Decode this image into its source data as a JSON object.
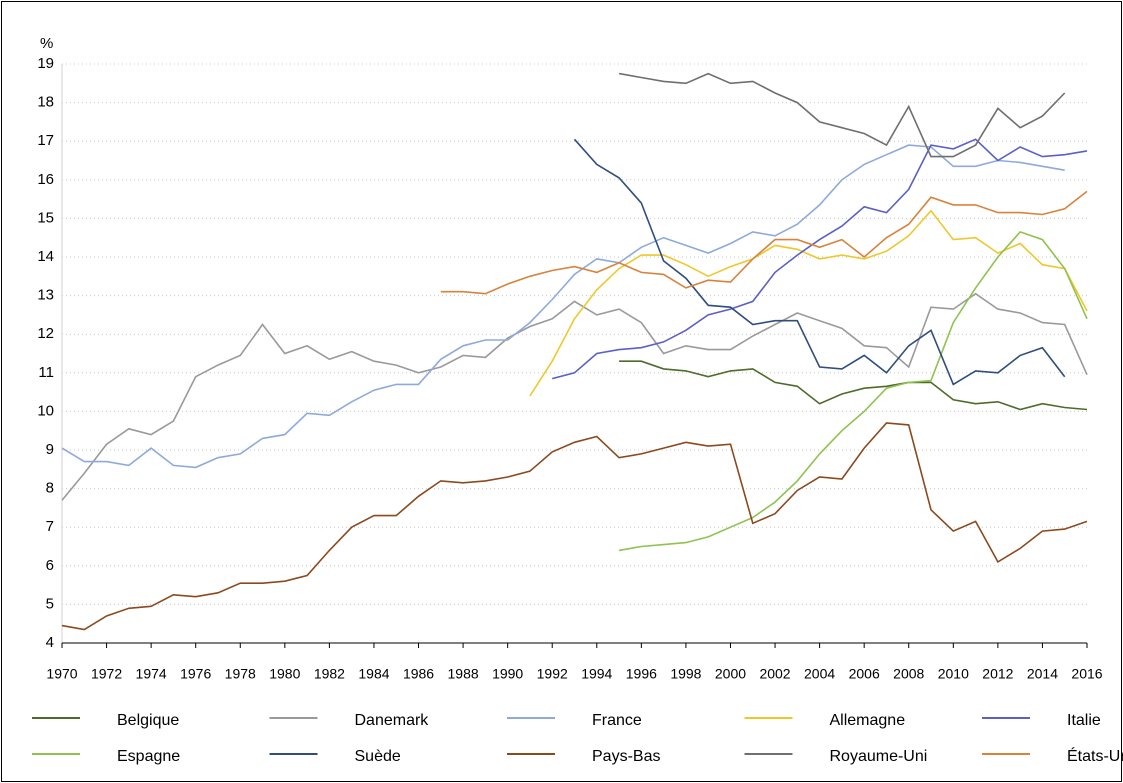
{
  "chart_data": {
    "type": "line",
    "y_label": "%",
    "x": [
      1970,
      1971,
      1972,
      1973,
      1974,
      1975,
      1976,
      1977,
      1978,
      1979,
      1980,
      1981,
      1982,
      1983,
      1984,
      1985,
      1986,
      1987,
      1988,
      1989,
      1990,
      1991,
      1992,
      1993,
      1994,
      1995,
      1996,
      1997,
      1998,
      1999,
      2000,
      2001,
      2002,
      2003,
      2004,
      2005,
      2006,
      2007,
      2008,
      2009,
      2010,
      2011,
      2012,
      2013,
      2014,
      2015,
      2016
    ],
    "xlim": [
      1970,
      2016
    ],
    "xticks": [
      1970,
      1972,
      1974,
      1976,
      1978,
      1980,
      1982,
      1984,
      1986,
      1988,
      1990,
      1992,
      1994,
      1996,
      1998,
      2000,
      2002,
      2004,
      2006,
      2008,
      2010,
      2012,
      2014,
      2016
    ],
    "ylim": [
      4,
      19
    ],
    "yticks": [
      4,
      5,
      6,
      7,
      8,
      9,
      10,
      11,
      12,
      13,
      14,
      15,
      16,
      17,
      18,
      19
    ],
    "grid": true,
    "series": [
      {
        "name": "Belgique",
        "color": "#4e6b2a",
        "values": [
          null,
          null,
          null,
          null,
          null,
          null,
          null,
          null,
          null,
          null,
          null,
          null,
          null,
          null,
          null,
          null,
          null,
          null,
          null,
          null,
          null,
          null,
          null,
          null,
          null,
          11.3,
          11.3,
          11.1,
          11.05,
          10.9,
          11.05,
          11.1,
          10.75,
          10.65,
          10.2,
          10.45,
          10.6,
          10.65,
          10.75,
          10.75,
          10.3,
          10.2,
          10.25,
          10.05,
          10.2,
          10.1,
          10.05
        ]
      },
      {
        "name": "Danemark",
        "color": "#9a9a9a",
        "values": [
          7.7,
          8.4,
          9.15,
          9.55,
          9.4,
          9.75,
          10.9,
          11.2,
          11.45,
          12.25,
          11.5,
          11.7,
          11.35,
          11.55,
          11.3,
          11.2,
          11.0,
          11.15,
          11.45,
          11.4,
          11.9,
          12.2,
          12.4,
          12.85,
          12.5,
          12.65,
          12.3,
          11.5,
          11.7,
          11.6,
          11.6,
          11.95,
          12.25,
          12.55,
          12.35,
          12.15,
          11.7,
          11.65,
          11.15,
          12.7,
          12.65,
          13.05,
          12.65,
          12.55,
          12.3,
          12.25,
          10.95
        ]
      },
      {
        "name": "France",
        "color": "#8eaadb",
        "values": [
          9.05,
          8.7,
          8.7,
          8.6,
          9.05,
          8.6,
          8.55,
          8.8,
          8.9,
          9.3,
          9.4,
          9.95,
          9.9,
          10.25,
          10.55,
          10.7,
          10.7,
          11.35,
          11.7,
          11.85,
          11.85,
          12.3,
          12.9,
          13.55,
          13.95,
          13.85,
          14.25,
          14.5,
          14.3,
          14.1,
          14.35,
          14.65,
          14.55,
          14.85,
          15.35,
          16.0,
          16.4,
          16.65,
          16.9,
          16.85,
          16.35,
          16.35,
          16.5,
          16.45,
          16.35,
          16.25,
          null
        ]
      },
      {
        "name": "Allemagne",
        "color": "#eec82a",
        "values": [
          null,
          null,
          null,
          null,
          null,
          null,
          null,
          null,
          null,
          null,
          null,
          null,
          null,
          null,
          null,
          null,
          null,
          null,
          null,
          null,
          null,
          10.4,
          11.3,
          12.4,
          13.15,
          13.7,
          14.05,
          14.05,
          13.8,
          13.5,
          13.75,
          13.95,
          14.3,
          14.2,
          13.95,
          14.05,
          13.95,
          14.15,
          14.55,
          15.2,
          14.45,
          14.5,
          14.1,
          14.35,
          13.8,
          13.7,
          12.6
        ]
      },
      {
        "name": "Italie",
        "color": "#5b5fc7",
        "values": [
          null,
          null,
          null,
          null,
          null,
          null,
          null,
          null,
          null,
          null,
          null,
          null,
          null,
          null,
          null,
          null,
          null,
          null,
          null,
          null,
          null,
          null,
          10.85,
          11.0,
          11.5,
          11.6,
          11.65,
          11.8,
          12.1,
          12.5,
          12.65,
          12.85,
          13.6,
          14.05,
          14.45,
          14.8,
          15.3,
          15.15,
          15.75,
          16.9,
          16.8,
          17.05,
          16.5,
          16.85,
          16.6,
          16.65,
          16.75
        ]
      },
      {
        "name": "Espagne",
        "color": "#8fc24f",
        "values": [
          null,
          null,
          null,
          null,
          null,
          null,
          null,
          null,
          null,
          null,
          null,
          null,
          null,
          null,
          null,
          null,
          null,
          null,
          null,
          null,
          null,
          null,
          null,
          null,
          null,
          6.4,
          6.5,
          6.55,
          6.6,
          6.75,
          7.0,
          7.25,
          7.65,
          8.2,
          8.9,
          9.5,
          10.0,
          10.6,
          10.75,
          10.8,
          12.3,
          13.2,
          14.0,
          14.65,
          14.45,
          13.7,
          12.4
        ]
      },
      {
        "name": "Suède",
        "color": "#2f4d7e",
        "values": [
          null,
          null,
          null,
          null,
          null,
          null,
          null,
          null,
          null,
          null,
          null,
          null,
          null,
          null,
          null,
          null,
          null,
          null,
          null,
          null,
          null,
          null,
          null,
          17.05,
          16.4,
          16.05,
          15.4,
          13.9,
          13.45,
          12.75,
          12.7,
          12.25,
          12.35,
          12.35,
          11.15,
          11.1,
          11.45,
          11.0,
          11.7,
          12.1,
          10.7,
          11.05,
          11.0,
          11.45,
          11.65,
          10.9,
          null
        ]
      },
      {
        "name": "Pays-Bas",
        "color": "#8b4a1e",
        "values": [
          4.45,
          4.35,
          4.7,
          4.9,
          4.95,
          5.25,
          5.2,
          5.3,
          5.55,
          5.55,
          5.6,
          5.75,
          6.4,
          7.0,
          7.3,
          7.3,
          7.8,
          8.2,
          8.15,
          8.2,
          8.3,
          8.45,
          8.95,
          9.2,
          9.35,
          8.8,
          8.9,
          9.05,
          9.2,
          9.1,
          9.15,
          7.1,
          7.35,
          7.95,
          8.3,
          8.25,
          9.05,
          9.7,
          9.65,
          7.45,
          6.9,
          7.15,
          6.1,
          6.45,
          6.9,
          6.95,
          7.15
        ]
      },
      {
        "name": "Royaume-Uni",
        "color": "#6f6f6f",
        "values": [
          null,
          null,
          null,
          null,
          null,
          null,
          null,
          null,
          null,
          null,
          null,
          null,
          null,
          null,
          null,
          null,
          null,
          null,
          null,
          null,
          null,
          null,
          null,
          null,
          null,
          18.75,
          18.65,
          18.55,
          18.5,
          18.75,
          18.5,
          18.55,
          18.25,
          18.0,
          17.5,
          17.35,
          17.2,
          16.9,
          17.9,
          16.6,
          16.6,
          16.9,
          17.85,
          17.35,
          17.65,
          18.25,
          null
        ]
      },
      {
        "name": "États-Unis",
        "color": "#d9823c",
        "values": [
          null,
          null,
          null,
          null,
          null,
          null,
          null,
          null,
          null,
          null,
          null,
          null,
          null,
          null,
          null,
          null,
          null,
          13.1,
          13.1,
          13.05,
          13.3,
          13.5,
          13.65,
          13.75,
          13.6,
          13.85,
          13.6,
          13.55,
          13.2,
          13.4,
          13.35,
          13.95,
          14.45,
          14.45,
          14.25,
          14.45,
          14.0,
          14.5,
          14.85,
          15.55,
          15.35,
          15.35,
          15.15,
          15.15,
          15.1,
          15.25,
          15.7
        ]
      }
    ]
  }
}
